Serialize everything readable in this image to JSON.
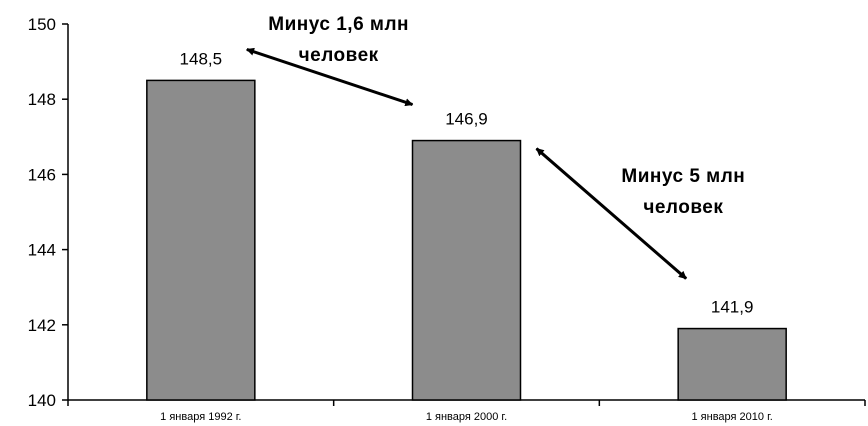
{
  "chart_data": {
    "type": "bar",
    "categories": [
      "1 января 1992 г.",
      "1 января 2000 г.",
      "1 января 2010 г."
    ],
    "values": [
      148.5,
      146.9,
      141.9
    ],
    "data_labels": [
      "148,5",
      "146,9",
      "141,9"
    ],
    "ylim": [
      140,
      150
    ],
    "yticks": [
      140,
      142,
      144,
      146,
      148,
      150
    ],
    "title": "",
    "xlabel": "",
    "ylabel": "",
    "grid": false,
    "bar_color": "#8c8c8c",
    "annotations": [
      {
        "lines": [
          "Минус 1,6 млн",
          "человек"
        ],
        "from": "1 января 1992 г.",
        "to": "1 января 2000 г."
      },
      {
        "lines": [
          "Минус 5 млн",
          "человек"
        ],
        "from": "1 января 2000 г.",
        "to": "1 января 2010 г."
      }
    ]
  }
}
